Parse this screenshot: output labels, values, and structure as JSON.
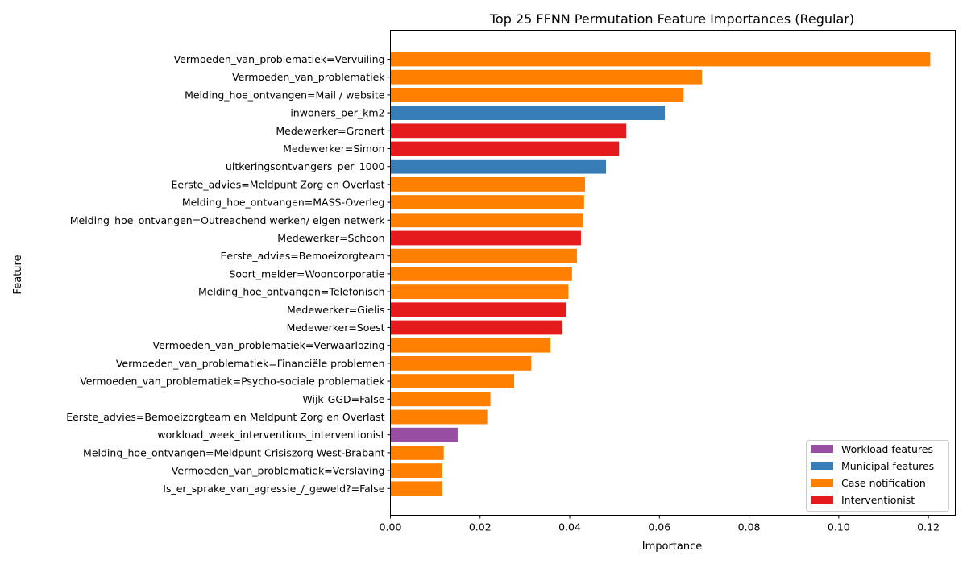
{
  "chart_data": {
    "type": "bar",
    "orientation": "horizontal",
    "title": "Top 25 FFNN Permutation Feature Importances (Regular)",
    "xlabel": "Importance",
    "ylabel": "Feature",
    "xlim": [
      0,
      0.126
    ],
    "xticks": [
      "0.00",
      "0.02",
      "0.04",
      "0.06",
      "0.08",
      "0.10",
      "0.12"
    ],
    "xtick_values": [
      0,
      0.02,
      0.04,
      0.06,
      0.08,
      0.1,
      0.12
    ],
    "grid": false,
    "legend_position": "bottom-right",
    "colors": {
      "Workload features": "#984ea3",
      "Municipal features": "#377eb8",
      "Case notification": "#ff7f00",
      "Interventionist": "#e41a1c"
    },
    "legend": [
      "Workload features",
      "Municipal features",
      "Case notification",
      "Interventionist"
    ],
    "bars": [
      {
        "label": "Vermoeden_van_problematiek=Vervuiling",
        "value": 0.1204,
        "group": "Case notification"
      },
      {
        "label": "Vermoeden_van_problematiek",
        "value": 0.0695,
        "group": "Case notification"
      },
      {
        "label": "Melding_hoe_ontvangen=Mail / website",
        "value": 0.0654,
        "group": "Case notification"
      },
      {
        "label": "inwoners_per_km2",
        "value": 0.0612,
        "group": "Municipal features"
      },
      {
        "label": "Medewerker=Gronert",
        "value": 0.0526,
        "group": "Interventionist"
      },
      {
        "label": "Medewerker=Simon",
        "value": 0.051,
        "group": "Interventionist"
      },
      {
        "label": "uitkeringsontvangers_per_1000",
        "value": 0.0481,
        "group": "Municipal features"
      },
      {
        "label": "Eerste_advies=Meldpunt Zorg en Overlast",
        "value": 0.0434,
        "group": "Case notification"
      },
      {
        "label": "Melding_hoe_ontvangen=MASS-Overleg",
        "value": 0.0432,
        "group": "Case notification"
      },
      {
        "label": "Melding_hoe_ontvangen=Outreachend werken/ eigen netwerk",
        "value": 0.043,
        "group": "Case notification"
      },
      {
        "label": "Medewerker=Schoon",
        "value": 0.0425,
        "group": "Interventionist"
      },
      {
        "label": "Eerste_advies=Bemoeizorgteam",
        "value": 0.0416,
        "group": "Case notification"
      },
      {
        "label": "Soort_melder=Wooncorporatie",
        "value": 0.0405,
        "group": "Case notification"
      },
      {
        "label": "Melding_hoe_ontvangen=Telefonisch",
        "value": 0.0397,
        "group": "Case notification"
      },
      {
        "label": "Medewerker=Gielis",
        "value": 0.0391,
        "group": "Interventionist"
      },
      {
        "label": "Medewerker=Soest",
        "value": 0.0384,
        "group": "Interventionist"
      },
      {
        "label": "Vermoeden_van_problematiek=Verwaarlozing",
        "value": 0.0357,
        "group": "Case notification"
      },
      {
        "label": "Vermoeden_van_problematiek=Financiële problemen",
        "value": 0.0314,
        "group": "Case notification"
      },
      {
        "label": "Vermoeden_van_problematiek=Psycho-sociale problematiek",
        "value": 0.0276,
        "group": "Case notification"
      },
      {
        "label": "Wijk-GGD=False",
        "value": 0.0223,
        "group": "Case notification"
      },
      {
        "label": "Eerste_advies=Bemoeizorgteam en Meldpunt Zorg en Overlast",
        "value": 0.0216,
        "group": "Case notification"
      },
      {
        "label": "workload_week_interventions_interventionist",
        "value": 0.015,
        "group": "Workload features"
      },
      {
        "label": "Melding_hoe_ontvangen=Meldpunt Crisiszorg West-Brabant",
        "value": 0.0119,
        "group": "Case notification"
      },
      {
        "label": "Vermoeden_van_problematiek=Verslaving",
        "value": 0.0116,
        "group": "Case notification"
      },
      {
        "label": "Is_er_sprake_van_agressie_/_geweld?=False",
        "value": 0.0116,
        "group": "Case notification"
      }
    ]
  }
}
